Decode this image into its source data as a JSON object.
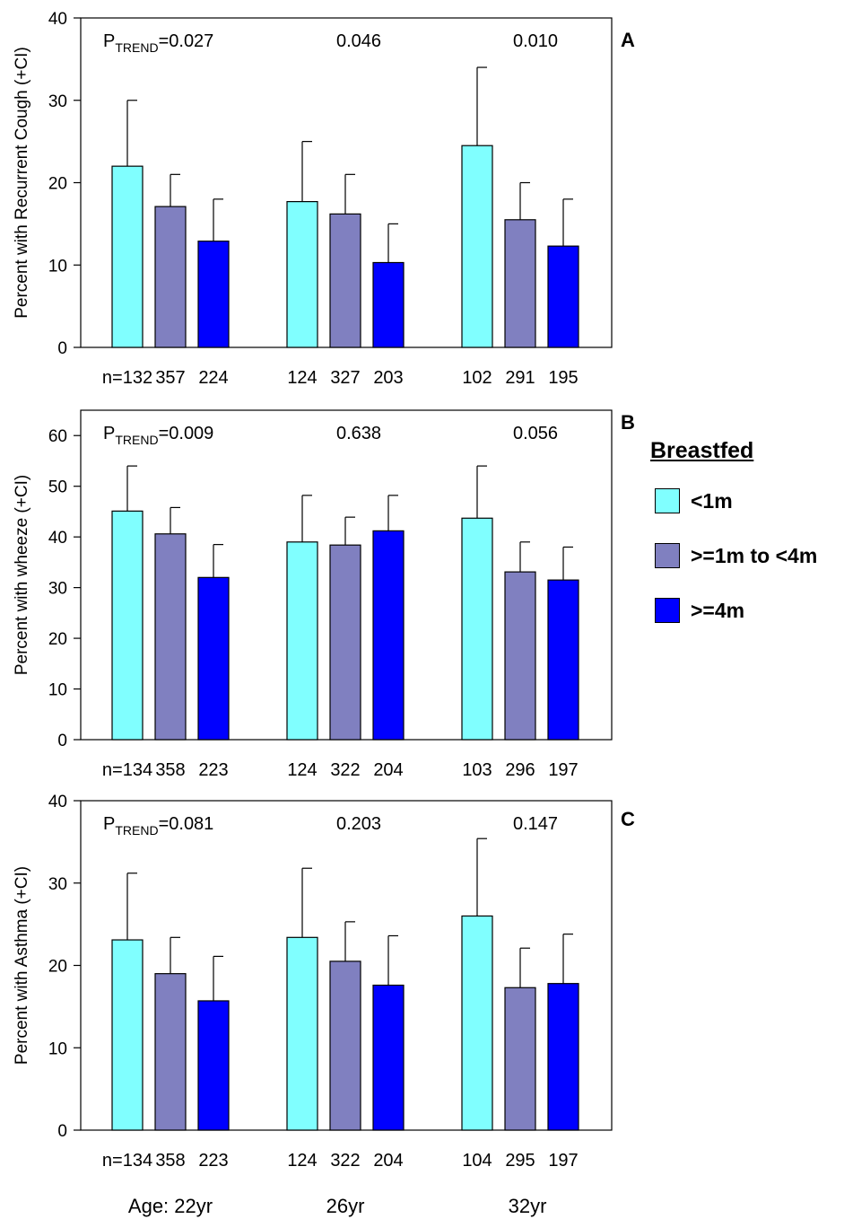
{
  "legend": {
    "title": "Breastfed",
    "items": [
      {
        "label": "<1m",
        "color": "#80FFFF"
      },
      {
        "label": ">=1m to <4m",
        "color": "#8080C0"
      },
      {
        "label": ">=4m",
        "color": "#0000FF"
      }
    ]
  },
  "age_labels": [
    "Age: 22yr",
    "26yr",
    "32yr"
  ],
  "chart_data": [
    {
      "type": "bar",
      "panel_label": "A",
      "ylabel": "Percent with Recurrent Cough (+CI)",
      "ylim": [
        0,
        40
      ],
      "yticks": [
        0,
        10,
        20,
        30,
        40
      ],
      "categories": [
        "22yr",
        "26yr",
        "32yr"
      ],
      "ptrend_prefix": "P",
      "ptrend_sub": "TREND",
      "ptrend": [
        "=0.027",
        "0.046",
        "0.010"
      ],
      "series": [
        {
          "name": "<1m",
          "values": [
            22.0,
            17.7,
            24.5
          ],
          "ci_upper": [
            30,
            25,
            34
          ],
          "n": [
            "n=132",
            "124",
            "102"
          ]
        },
        {
          "name": ">=1m to <4m",
          "values": [
            17.1,
            16.2,
            15.5
          ],
          "ci_upper": [
            21,
            21,
            20
          ],
          "n": [
            "357",
            "327",
            "291"
          ]
        },
        {
          "name": ">=4m",
          "values": [
            12.9,
            10.3,
            12.3
          ],
          "ci_upper": [
            18,
            15,
            18
          ],
          "n": [
            "224",
            "203",
            "195"
          ]
        }
      ]
    },
    {
      "type": "bar",
      "panel_label": "B",
      "ylabel": "Percent with wheeze (+CI)",
      "ylim": [
        0,
        65
      ],
      "yticks": [
        0,
        10,
        20,
        30,
        40,
        50,
        60
      ],
      "categories": [
        "22yr",
        "26yr",
        "32yr"
      ],
      "ptrend_prefix": "P",
      "ptrend_sub": "TREND",
      "ptrend": [
        "=0.009",
        "0.638",
        "0.056"
      ],
      "series": [
        {
          "name": "<1m",
          "values": [
            45.1,
            39.0,
            43.7
          ],
          "ci_upper": [
            54,
            48.2,
            54
          ],
          "n": [
            "n=134",
            "124",
            "103"
          ]
        },
        {
          "name": ">=1m to <4m",
          "values": [
            40.6,
            38.4,
            33.1
          ],
          "ci_upper": [
            45.8,
            43.9,
            39
          ],
          "n": [
            "358",
            "322",
            "296"
          ]
        },
        {
          "name": ">=4m",
          "values": [
            32.0,
            41.2,
            31.5
          ],
          "ci_upper": [
            38.5,
            48.2,
            38
          ],
          "n": [
            "223",
            "204",
            "197"
          ]
        }
      ]
    },
    {
      "type": "bar",
      "panel_label": "C",
      "ylabel": "Percent with Asthma (+CI)",
      "ylim": [
        0,
        40
      ],
      "yticks": [
        0,
        10,
        20,
        30,
        40
      ],
      "categories": [
        "22yr",
        "26yr",
        "32yr"
      ],
      "ptrend_prefix": "P",
      "ptrend_sub": "TREND",
      "ptrend": [
        "=0.081",
        "0.203",
        "0.147"
      ],
      "series": [
        {
          "name": "<1m",
          "values": [
            23.1,
            23.4,
            26.0
          ],
          "ci_upper": [
            31.2,
            31.8,
            35.4
          ],
          "n": [
            "n=134",
            "124",
            "104"
          ]
        },
        {
          "name": ">=1m to <4m",
          "values": [
            19.0,
            20.5,
            17.3
          ],
          "ci_upper": [
            23.4,
            25.3,
            22.1
          ],
          "n": [
            "358",
            "322",
            "295"
          ]
        },
        {
          "name": ">=4m",
          "values": [
            15.7,
            17.6,
            17.8
          ],
          "ci_upper": [
            21.1,
            23.6,
            23.8
          ],
          "n": [
            "223",
            "204",
            "197"
          ]
        }
      ]
    }
  ]
}
